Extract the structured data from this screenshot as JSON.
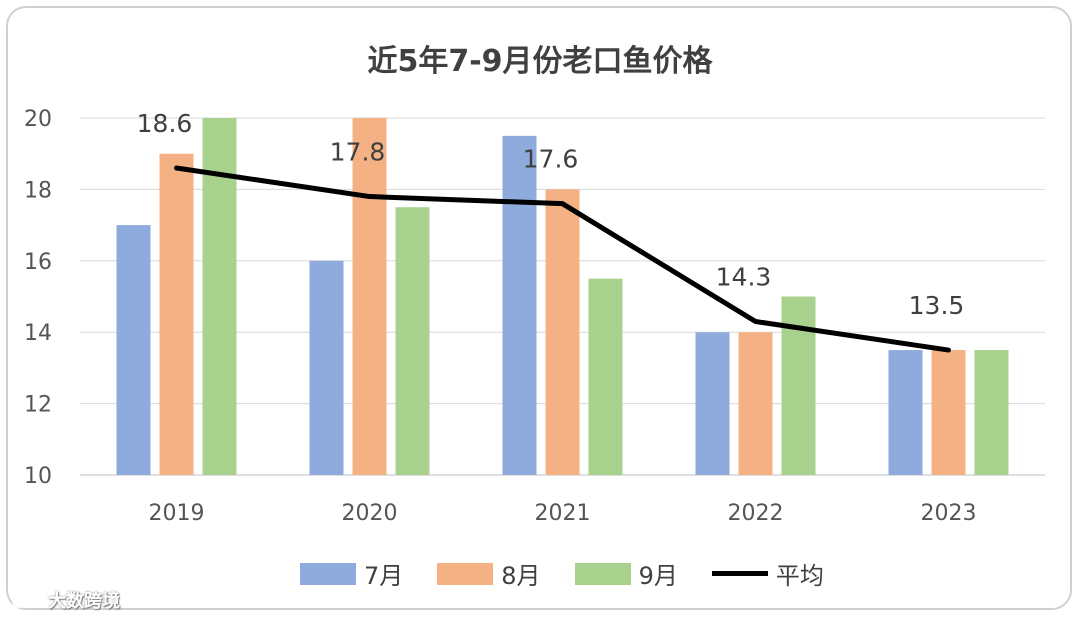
{
  "chart_data": {
    "type": "bar",
    "title": "近5年7-9月份老口鱼价格",
    "categories": [
      "2019",
      "2020",
      "2021",
      "2022",
      "2023"
    ],
    "series": [
      {
        "name": "7月",
        "values": [
          17.0,
          16.0,
          19.5,
          14.0,
          13.5
        ],
        "color": "#8faadc"
      },
      {
        "name": "8月",
        "values": [
          19.0,
          20.0,
          18.0,
          14.0,
          13.5
        ],
        "color": "#f4b183"
      },
      {
        "name": "9月",
        "values": [
          20.0,
          17.5,
          15.5,
          15.0,
          13.5
        ],
        "color": "#a9d18e"
      }
    ],
    "line_series": {
      "name": "平均",
      "values": [
        18.6,
        17.8,
        17.6,
        14.3,
        13.5
      ],
      "color": "#000000",
      "labels": [
        "18.6",
        "17.8",
        "17.6",
        "14.3",
        "13.5"
      ]
    },
    "ylim": [
      10,
      20
    ],
    "yticks": [
      "10",
      "12",
      "14",
      "16",
      "18",
      "20"
    ],
    "grid": true,
    "legend_position": "bottom"
  },
  "watermark": {
    "text": "大数跨境"
  }
}
